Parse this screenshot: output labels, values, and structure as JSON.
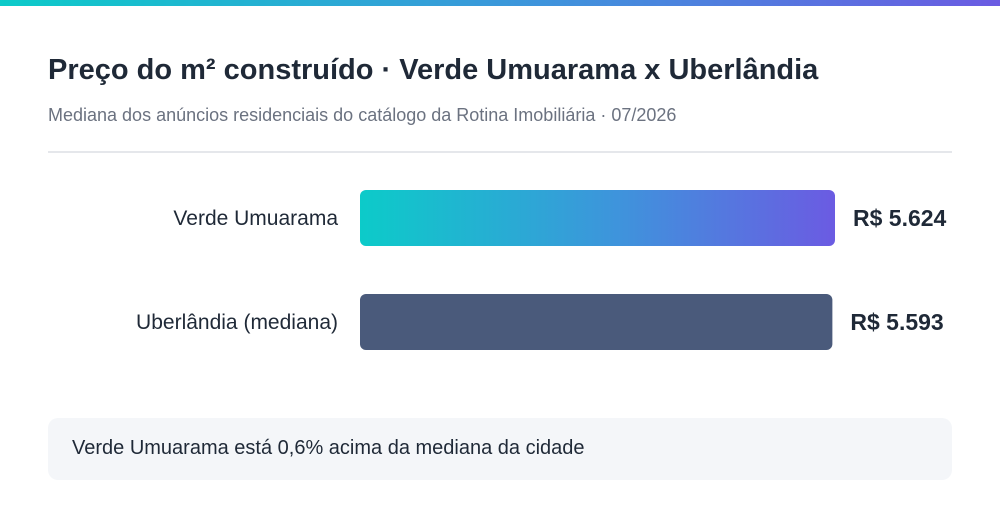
{
  "chart_data": {
    "type": "bar",
    "orientation": "horizontal",
    "title": "Preço do m² construído · Verde Umuarama x Uberlândia",
    "subtitle": "Mediana dos anúncios residenciais do catálogo da Rotina Imobiliária · 07/2026",
    "categories": [
      "Verde Umuarama",
      "Uberlândia (mediana)"
    ],
    "values": [
      5624,
      5593
    ],
    "value_labels": [
      "R$ 5.624",
      "R$ 5.593"
    ],
    "grid": false,
    "bar_styles": [
      {
        "gradient": [
          "#0ccbc9",
          "#3f93dc",
          "#6b5be2"
        ]
      },
      {
        "color": "#4a5a7b"
      }
    ]
  },
  "note": "Verde Umuarama está 0,6% acima da mediana da cidade",
  "colors": {
    "accent_gradient": [
      "#0ccbc9",
      "#3f93dc",
      "#6b5be2"
    ],
    "city_bar": "#4a5a7b",
    "text": "#1f2937",
    "muted": "#6b7280"
  }
}
